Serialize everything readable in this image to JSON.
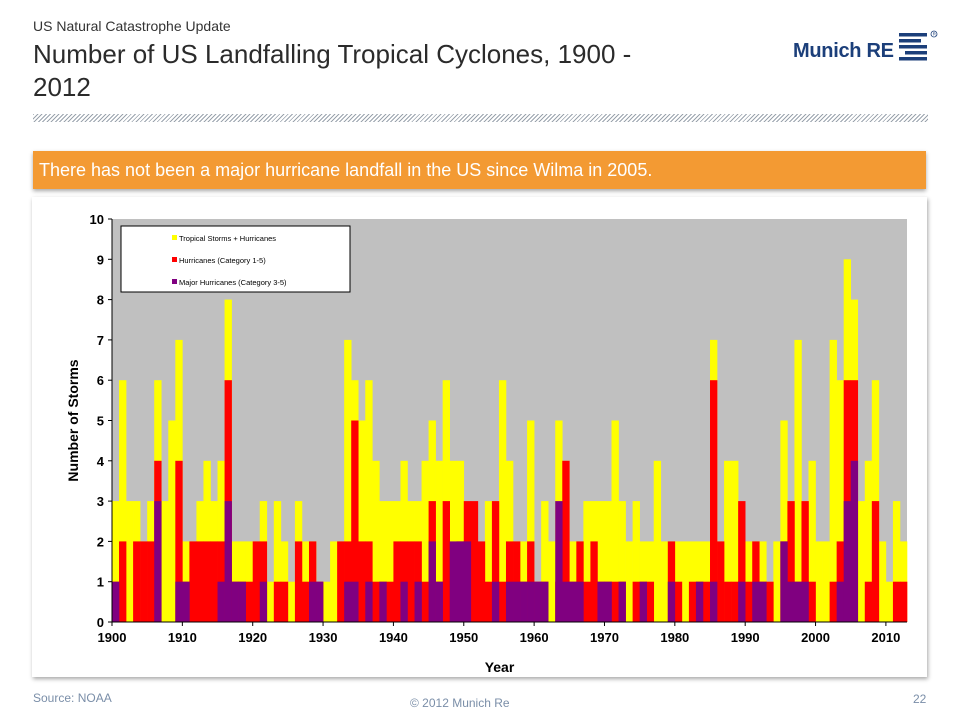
{
  "header": {
    "supertitle": "US Natural Catastrophe Update",
    "title": "Number of US Landfalling Tropical Cyclones, 1900 - 2012",
    "logo_text": "Munich RE"
  },
  "callout": {
    "text": "There has not been a major hurricane landfall in the US since Wilma in 2005."
  },
  "footer": {
    "source": "Source: NOAA",
    "copyright": "© 2012 Munich Re",
    "page": "22"
  },
  "colors": {
    "tropical": "#ffff00",
    "hurricane": "#ff0000",
    "major": "#800080",
    "plot_bg": "#c0c0c0",
    "callout": "#f39a33",
    "brand": "#1c3f7a"
  },
  "chart_data": {
    "type": "bar",
    "xlabel": "Year",
    "ylabel": "Number of Storms",
    "ylim": [
      0,
      10
    ],
    "xlim": [
      1900,
      2012
    ],
    "x_ticks": [
      1900,
      1910,
      1920,
      1930,
      1940,
      1950,
      1960,
      1970,
      1980,
      1990,
      2000,
      2010
    ],
    "y_ticks": [
      0,
      1,
      2,
      3,
      4,
      5,
      6,
      7,
      8,
      9,
      10
    ],
    "grid": false,
    "legend_position": "top-left",
    "x": [
      1900,
      1901,
      1902,
      1903,
      1904,
      1905,
      1906,
      1907,
      1908,
      1909,
      1910,
      1911,
      1912,
      1913,
      1914,
      1915,
      1916,
      1917,
      1918,
      1919,
      1920,
      1921,
      1922,
      1923,
      1924,
      1925,
      1926,
      1927,
      1928,
      1929,
      1930,
      1931,
      1932,
      1933,
      1934,
      1935,
      1936,
      1937,
      1938,
      1939,
      1940,
      1941,
      1942,
      1943,
      1944,
      1945,
      1946,
      1947,
      1948,
      1949,
      1950,
      1951,
      1952,
      1953,
      1954,
      1955,
      1956,
      1957,
      1958,
      1959,
      1960,
      1961,
      1962,
      1963,
      1964,
      1965,
      1966,
      1967,
      1968,
      1969,
      1970,
      1971,
      1972,
      1973,
      1974,
      1975,
      1976,
      1977,
      1978,
      1979,
      1980,
      1981,
      1982,
      1983,
      1984,
      1985,
      1986,
      1987,
      1988,
      1989,
      1990,
      1991,
      1992,
      1993,
      1994,
      1995,
      1996,
      1997,
      1998,
      1999,
      2000,
      2001,
      2002,
      2003,
      2004,
      2005,
      2006,
      2007,
      2008,
      2009,
      2010,
      2011,
      2012
    ],
    "series": [
      {
        "name": "Tropical Storms + Hurricanes",
        "values": [
          3,
          6,
          3,
          3,
          2,
          3,
          6,
          3,
          5,
          7,
          2,
          2,
          3,
          4,
          3,
          4,
          8,
          2,
          2,
          2,
          2,
          3,
          1,
          3,
          2,
          1,
          3,
          2,
          2,
          1,
          1,
          2,
          2,
          7,
          6,
          5,
          6,
          4,
          3,
          3,
          3,
          4,
          3,
          3,
          4,
          5,
          4,
          6,
          4,
          4,
          2,
          2,
          1,
          3,
          3,
          6,
          4,
          2,
          2,
          5,
          1,
          3,
          2,
          5,
          4,
          2,
          2,
          3,
          3,
          3,
          3,
          5,
          3,
          2,
          3,
          2,
          2,
          4,
          2,
          2,
          2,
          2,
          2,
          2,
          2,
          7,
          2,
          4,
          4,
          2,
          2,
          2,
          2,
          1,
          2,
          5,
          3,
          7,
          3,
          4,
          2,
          2,
          7,
          6,
          9,
          8,
          3,
          4,
          6,
          2,
          1,
          3,
          2
        ]
      },
      {
        "name": "Hurricanes (Category 1-5)",
        "values": [
          1,
          2,
          0,
          2,
          2,
          2,
          4,
          0,
          0,
          4,
          1,
          2,
          2,
          2,
          2,
          2,
          6,
          1,
          1,
          1,
          2,
          2,
          0,
          1,
          1,
          0,
          2,
          1,
          2,
          1,
          0,
          0,
          2,
          2,
          5,
          2,
          2,
          1,
          1,
          1,
          2,
          2,
          2,
          2,
          1,
          3,
          1,
          3,
          1,
          2,
          3,
          3,
          2,
          1,
          3,
          1,
          2,
          2,
          1,
          2,
          1,
          1,
          0,
          1,
          4,
          1,
          2,
          1,
          2,
          1,
          1,
          1,
          1,
          0,
          1,
          1,
          1,
          0,
          0,
          2,
          1,
          0,
          1,
          1,
          1,
          6,
          2,
          1,
          1,
          3,
          1,
          2,
          1,
          1,
          0,
          2,
          3,
          1,
          3,
          1,
          0,
          0,
          1,
          2,
          6,
          6,
          0,
          1,
          3,
          0,
          0,
          1,
          1
        ]
      },
      {
        "name": "Major Hurricanes (Category 3-5)",
        "values": [
          1,
          0,
          0,
          0,
          0,
          0,
          3,
          0,
          0,
          1,
          1,
          0,
          0,
          0,
          0,
          1,
          3,
          1,
          1,
          0,
          0,
          1,
          0,
          0,
          0,
          0,
          0,
          0,
          1,
          1,
          0,
          0,
          0,
          1,
          1,
          0,
          1,
          0,
          1,
          0,
          0,
          1,
          0,
          1,
          0,
          2,
          1,
          0,
          2,
          2,
          2,
          0,
          0,
          0,
          1,
          0,
          1,
          1,
          1,
          1,
          1,
          1,
          0,
          3,
          1,
          1,
          1,
          0,
          0,
          1,
          1,
          0,
          1,
          0,
          0,
          1,
          0,
          0,
          0,
          1,
          0,
          0,
          0,
          1,
          0,
          1,
          0,
          0,
          0,
          1,
          0,
          1,
          1,
          0,
          0,
          2,
          1,
          1,
          1,
          0,
          0,
          0,
          0,
          1,
          3,
          4,
          0,
          0,
          0,
          0,
          0,
          0,
          0
        ]
      }
    ]
  }
}
